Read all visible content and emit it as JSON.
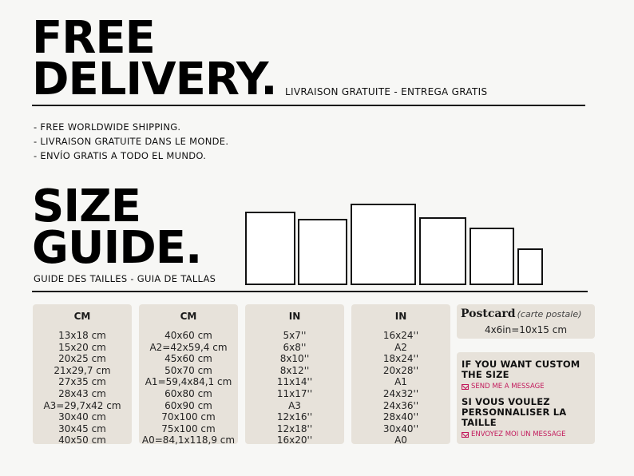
{
  "delivery": {
    "title_line1": "FREE",
    "title_line2": "DELIVERY.",
    "subtitle": "LIVRAISON GRATUITE - ENTREGA GRATIS",
    "items": [
      "- FREE WORLDWIDE SHIPPING.",
      "- LIVRAISON GRATUITE DANS LE MONDE.",
      "- ENVÍO GRATIS A TODO EL MUNDO."
    ]
  },
  "size_guide": {
    "title_line1": "SIZE",
    "title_line2": "GUIDE.",
    "subtitle": "GUIDE DES TAILLES - GUIA DE TALLAS"
  },
  "columns": [
    {
      "header": "CM",
      "values": [
        "13x18 cm",
        "15x20 cm",
        "20x25 cm",
        "21x29,7 cm",
        "27x35 cm",
        "28x43 cm",
        "A3=29,7x42 cm",
        "30x40 cm",
        "30x45 cm",
        "40x50 cm"
      ]
    },
    {
      "header": "CM",
      "values": [
        "40x60 cm",
        "A2=42x59,4 cm",
        "45x60 cm",
        "50x70 cm",
        "A1=59,4x84,1 cm",
        "60x80 cm",
        "60x90 cm",
        "70x100 cm",
        "75x100 cm",
        "A0=84,1x118,9 cm"
      ]
    },
    {
      "header": "IN",
      "values": [
        "5x7''",
        "6x8''",
        "8x10''",
        "8x12''",
        "11x14''",
        "11x17''",
        "A3",
        "12x16''",
        "12x18''",
        "16x20''"
      ]
    },
    {
      "header": "IN",
      "values": [
        "16x24''",
        "A2",
        "18x24''",
        "20x28''",
        "A1",
        "24x32''",
        "24x36''",
        "28x40''",
        "30x40''",
        "A0"
      ]
    }
  ],
  "postcard": {
    "title": "Postcard",
    "subtitle": "(carte postale)",
    "size": "4x6in=10x15 cm"
  },
  "custom": {
    "en_heading": "IF YOU WANT CUSTOM THE SIZE",
    "en_link": "SEND ME A MESSAGE",
    "fr_heading": "SI VOUS VOULEZ PERSONNALISER LA TAILLE",
    "fr_link": "ENVOYEZ MOI UN MESSAGE",
    "icon": "mail-icon",
    "link_color": "#c2185b"
  }
}
